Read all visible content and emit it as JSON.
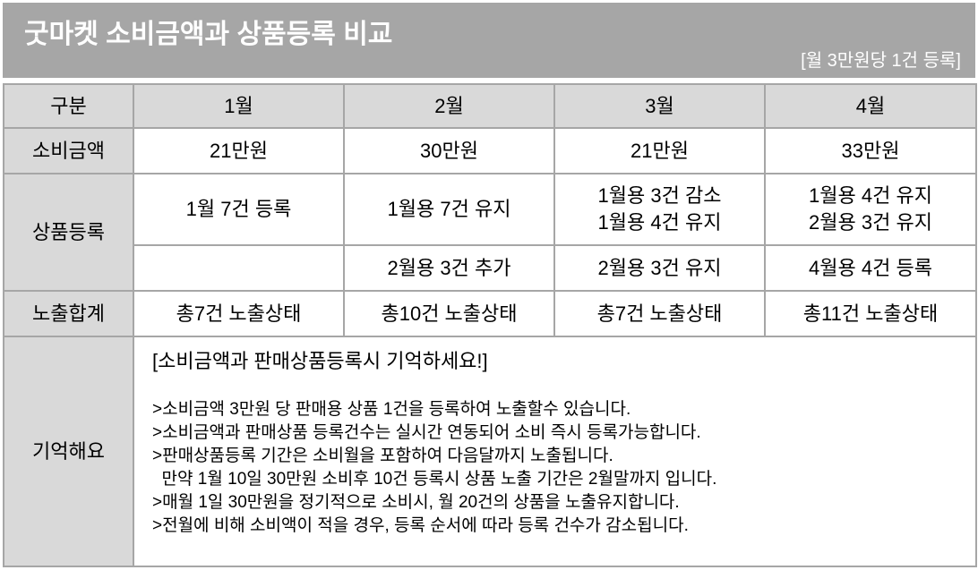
{
  "banner": {
    "title": "굿마켓 소비금액과 상품등록 비교",
    "subtitle": "[월 3만원당 1건 등록]"
  },
  "table": {
    "headers": [
      "구분",
      "1월",
      "2월",
      "3월",
      "4월"
    ],
    "spend": {
      "label": "소비금액",
      "values": [
        "21만원",
        "30만원",
        "21만원",
        "33만원"
      ]
    },
    "registration": {
      "label": "상품등록",
      "row1": [
        [
          "1월 7건 등록"
        ],
        [
          "1월용 7건 유지"
        ],
        [
          "1월용 3건 감소",
          "1월용 4건 유지"
        ],
        [
          "1월용 4건 유지",
          "2월용 3건 유지"
        ]
      ],
      "row2": [
        "",
        "2월용 3건 추가",
        "2월용 3건 유지",
        "4월용 4건 등록"
      ]
    },
    "total": {
      "label": "노출합계",
      "values": [
        "총7건 노출상태",
        "총10건 노출상태",
        "총7건 노출상태",
        "총11건 노출상태"
      ]
    },
    "memo": {
      "label": "기억해요",
      "title": "[소비금액과 판매상품등록시 기억하세요!]",
      "lines": [
        ">소비금액 3만원 당 판매용 상품 1건을 등록하여 노출할수 있습니다.",
        ">소비금액과 판매상품 등록건수는 실시간 연동되어 소비 즉시 등록가능합니다.",
        ">판매상품등록 기간은 소비월을 포함하여 다음달까지 노출됩니다.",
        "  만약 1월 10일 30만원 소비후 10건 등록시 상품 노출 기간은 2월말까지 입니다.",
        ">매월 1일 30만원을 정기적으로 소비시, 월 20건의 상품을 노출유지합니다.",
        ">전월에 비해 소비액이 적을 경우, 등록 순서에 따라 등록 건수가 감소됩니다."
      ]
    }
  }
}
